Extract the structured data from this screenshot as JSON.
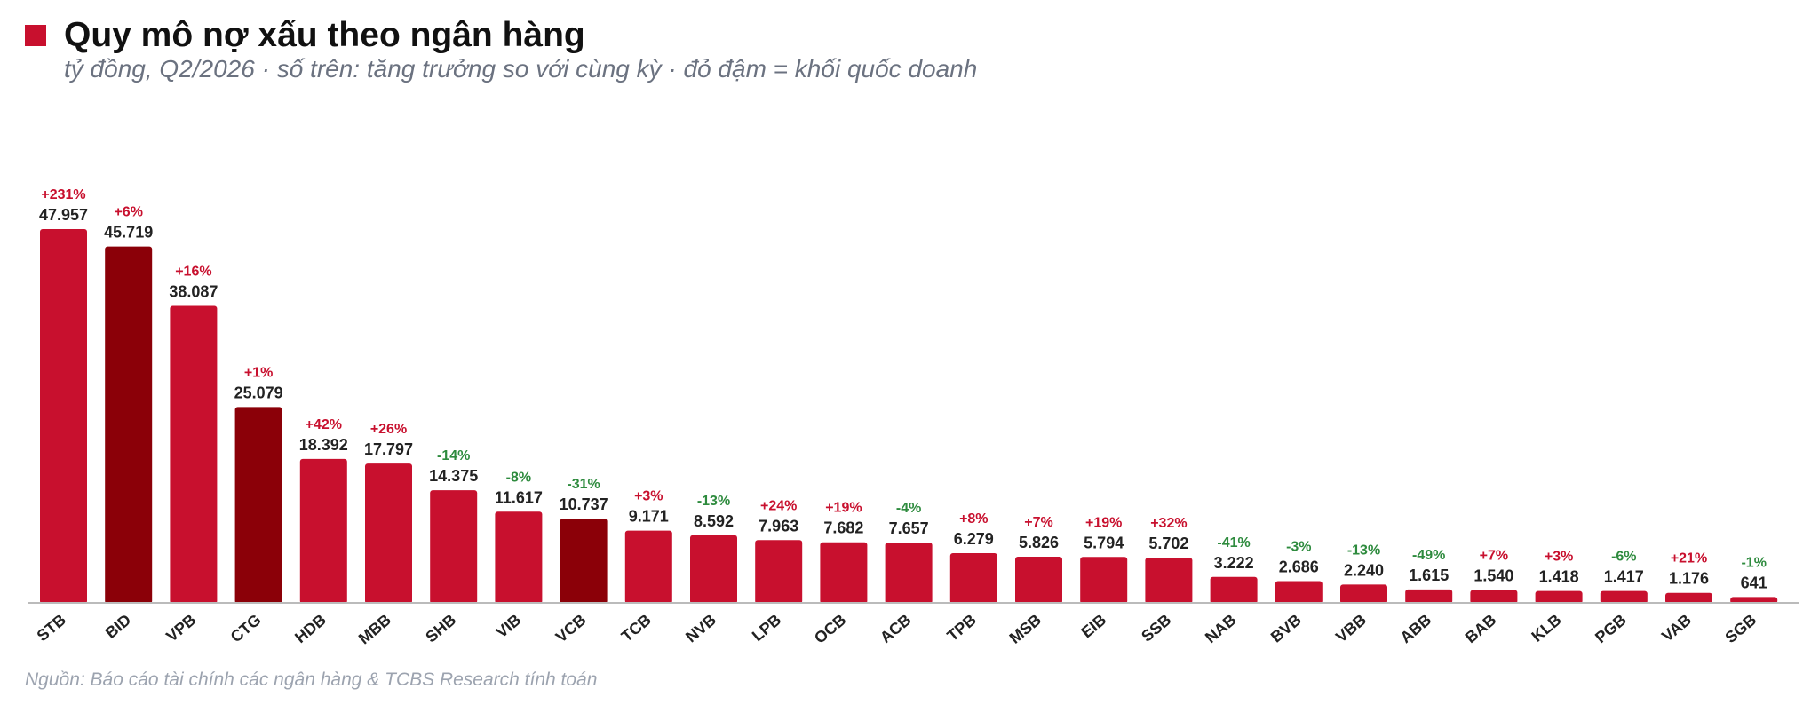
{
  "header": {
    "title": "Quy mô nợ xấu theo ngân hàng",
    "subtitle": "tỷ đồng, Q2/2026 · số trên: tăng trưởng so với cùng kỳ · đỏ đậm = khối quốc doanh"
  },
  "footer": {
    "source": "Nguồn: Báo cáo tài chính các ngân hàng & TCBS Research tính toán"
  },
  "colors": {
    "bar": "#c8102e",
    "bar_state": "#8b0008",
    "positive": "#c8102e",
    "negative": "#2e8b3e",
    "axis": "#bbbbbb"
  },
  "chart_data": {
    "type": "bar",
    "categories": [
      "STB",
      "BID",
      "VPB",
      "CTG",
      "HDB",
      "MBB",
      "SHB",
      "VIB",
      "VCB",
      "TCB",
      "NVB",
      "LPB",
      "OCB",
      "ACB",
      "TPB",
      "MSB",
      "EIB",
      "SSB",
      "NAB",
      "BVB",
      "VBB",
      "ABB",
      "BAB",
      "KLB",
      "PGB",
      "VAB",
      "SGB"
    ],
    "values": [
      47957,
      45719,
      38087,
      25079,
      18392,
      17797,
      14375,
      11617,
      10737,
      9171,
      8592,
      7963,
      7682,
      7657,
      6279,
      5826,
      5794,
      5702,
      3222,
      2686,
      2240,
      1615,
      1540,
      1418,
      1417,
      1176,
      641
    ],
    "value_labels": [
      "47.957",
      "45.719",
      "38.087",
      "25.079",
      "18.392",
      "17.797",
      "14.375",
      "11.617",
      "10.737",
      "9.171",
      "8.592",
      "7.963",
      "7.682",
      "7.657",
      "6.279",
      "5.826",
      "5.794",
      "5.702",
      "3.222",
      "2.686",
      "2.240",
      "1.615",
      "1.540",
      "1.418",
      "1.417",
      "1.176",
      "641"
    ],
    "growth_labels": [
      "+231%",
      "+6%",
      "+16%",
      "+1%",
      "+42%",
      "+26%",
      "-14%",
      "-8%",
      "-31%",
      "+3%",
      "-13%",
      "+24%",
      "+19%",
      "-4%",
      "+8%",
      "+7%",
      "+19%",
      "+32%",
      "-41%",
      "-3%",
      "-13%",
      "-49%",
      "+7%",
      "+3%",
      "-6%",
      "+21%",
      "-1%"
    ],
    "state_owned": [
      "BID",
      "CTG",
      "VCB"
    ],
    "ylim": [
      0,
      47957
    ],
    "grid": false,
    "legend": "none"
  }
}
